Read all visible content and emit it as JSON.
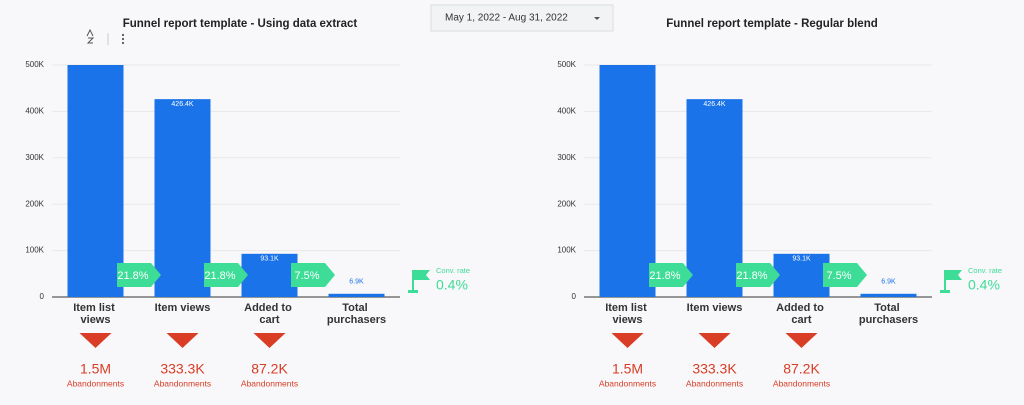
{
  "date_range": "May 1, 2022 - Aug 31, 2022",
  "chart_data": [
    {
      "type": "funnel",
      "title": "Funnel report template - Using data extract",
      "categories": [
        "Item list views",
        "Item views",
        "Added to cart",
        "Total purchasers"
      ],
      "values": [
        500000,
        426400,
        93100,
        6900
      ],
      "value_labels": [
        null,
        "426.4K",
        "93.1K",
        "6.9K"
      ],
      "color": "#1a73e8",
      "ylim": [
        0,
        500000
      ],
      "yticks": [
        0,
        {
          "value": 100000,
          "label": "100K"
        },
        {
          "value": 200000,
          "label": "200K"
        },
        {
          "value": 300000,
          "label": "300K"
        },
        {
          "value": 400000,
          "label": "400K"
        },
        {
          "value": 500000,
          "label": "500K"
        }
      ],
      "grid": true,
      "step_rates": {
        "values": [
          21.8,
          21.8,
          7.5
        ],
        "value_labels": [
          "21.8%",
          "21.8%",
          "7.5%"
        ],
        "color": "#3ddc97"
      },
      "conversion_rate": {
        "label": "Conv. rate",
        "value": 0.4,
        "value_label": "0.4%"
      },
      "abandonments": {
        "label": "Abandonments",
        "values": [
          1500000,
          333300,
          87200
        ],
        "value_labels": [
          "1.5M",
          "333.3K",
          "87.2K"
        ],
        "color": "#d93d25"
      }
    },
    {
      "type": "funnel",
      "title": "Funnel report template - Regular blend",
      "categories": [
        "Item list views",
        "Item views",
        "Added to cart",
        "Total purchasers"
      ],
      "values": [
        500000,
        426400,
        93100,
        6900
      ],
      "value_labels": [
        null,
        "426.4K",
        "93.1K",
        "6.9K"
      ],
      "color": "#1a73e8",
      "ylim": [
        0,
        500000
      ],
      "yticks": [
        0,
        {
          "value": 100000,
          "label": "100K"
        },
        {
          "value": 200000,
          "label": "200K"
        },
        {
          "value": 300000,
          "label": "300K"
        },
        {
          "value": 400000,
          "label": "400K"
        },
        {
          "value": 500000,
          "label": "500K"
        }
      ],
      "grid": true,
      "step_rates": {
        "values": [
          21.8,
          21.8,
          7.5
        ],
        "value_labels": [
          "21.8%",
          "21.8%",
          "7.5%"
        ],
        "color": "#3ddc97"
      },
      "conversion_rate": {
        "label": "Conv. rate",
        "value": 0.4,
        "value_label": "0.4%"
      },
      "abandonments": {
        "label": "Abandonments",
        "values": [
          1500000,
          333300,
          87200
        ],
        "value_labels": [
          "1.5M",
          "333.3K",
          "87.2K"
        ],
        "color": "#d93d25"
      }
    }
  ]
}
